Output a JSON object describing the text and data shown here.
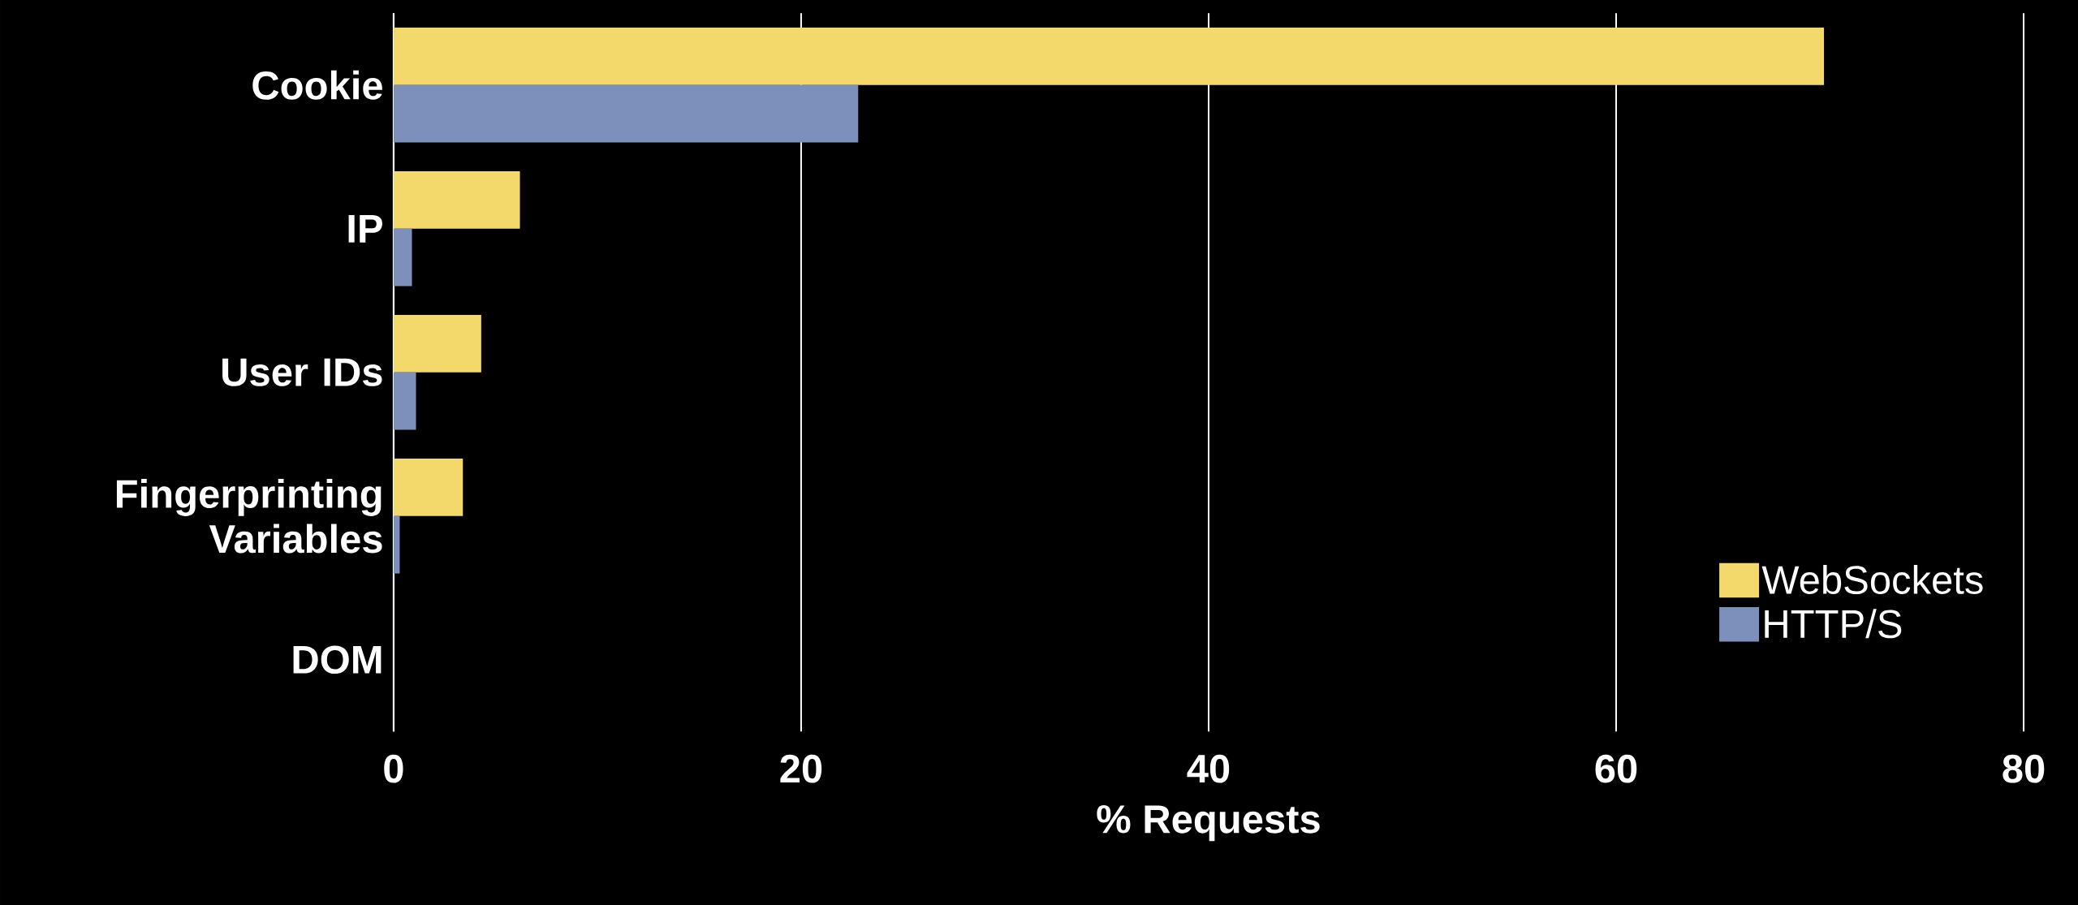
{
  "chart_data": {
    "type": "bar",
    "orientation": "horizontal",
    "xlabel": "% Requests",
    "categories": [
      "Cookie",
      "IP",
      "User IDs",
      "Fingerprinting Variables",
      "DOM"
    ],
    "series": [
      {
        "name": "WebSockets",
        "color": "#f3d96b",
        "values": [
          70.2,
          6.2,
          4.3,
          3.4,
          0
        ]
      },
      {
        "name": "HTTP/S",
        "color": "#7d8fbb",
        "values": [
          22.8,
          0.9,
          1.1,
          0.3,
          0
        ]
      }
    ],
    "xlim": [
      0,
      80
    ],
    "xticks": [
      0,
      20,
      40,
      60,
      80
    ],
    "grid": "x",
    "legend": "bottom right"
  }
}
